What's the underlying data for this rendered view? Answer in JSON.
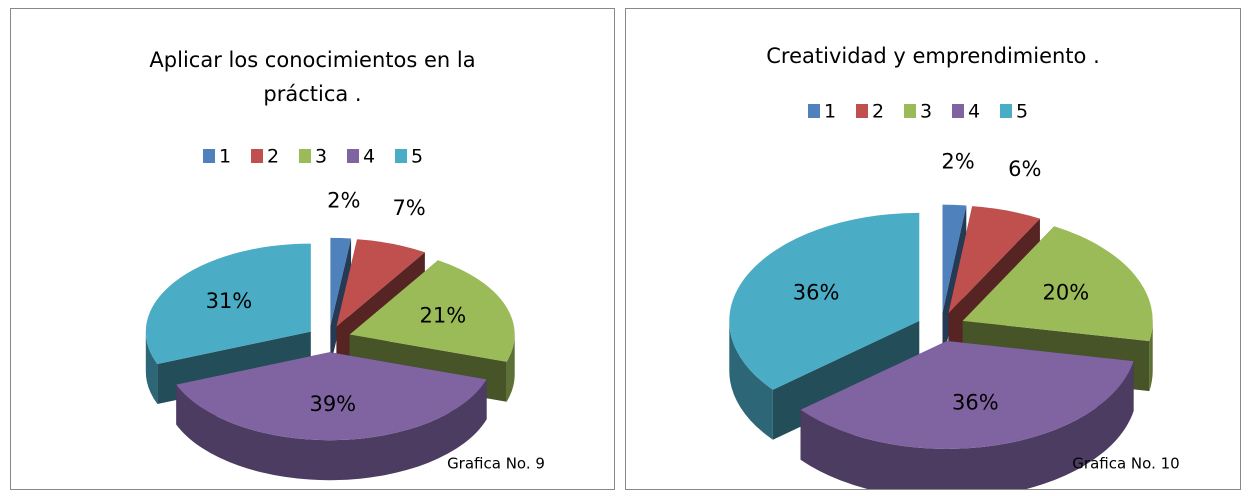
{
  "chart_data": [
    {
      "type": "pie",
      "title": "Aplicar los conocimientos en la práctica .",
      "categories": [
        "1",
        "2",
        "3",
        "4",
        "5"
      ],
      "values": [
        2,
        7,
        21,
        39,
        31
      ],
      "value_labels": [
        "2%",
        "7%",
        "21%",
        "39%",
        "31%"
      ],
      "colors": [
        "#4f81bd",
        "#c0504d",
        "#9bbb59",
        "#8064a2",
        "#4bacc6"
      ],
      "legend": "top",
      "caption": "Grafica No. 9"
    },
    {
      "type": "pie",
      "title": "Creatividad y emprendimiento .",
      "categories": [
        "1",
        "2",
        "3",
        "4",
        "5"
      ],
      "values": [
        2,
        6,
        20,
        36,
        36
      ],
      "value_labels": [
        "2%",
        "6%",
        "20%",
        "36%",
        "36%"
      ],
      "colors": [
        "#4f81bd",
        "#c0504d",
        "#9bbb59",
        "#8064a2",
        "#4bacc6"
      ],
      "legend": "top",
      "caption": "Grafica No. 10"
    }
  ]
}
